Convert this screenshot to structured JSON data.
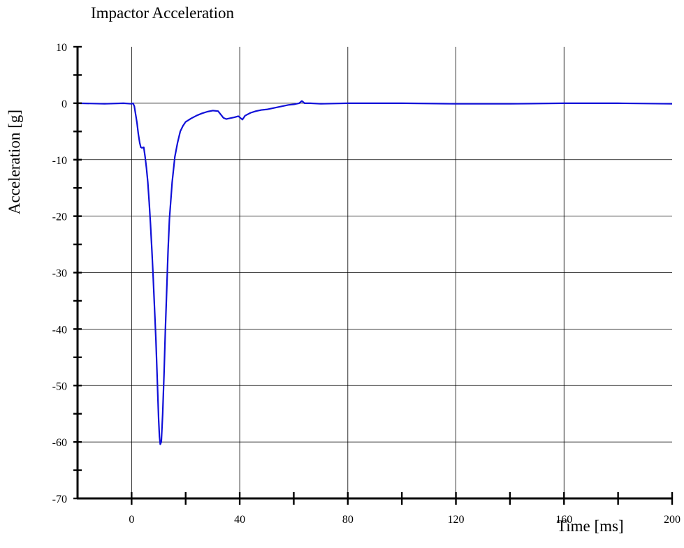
{
  "chart_data": {
    "type": "line",
    "title": "Impactor Acceleration",
    "xlabel": "Time [ms]",
    "ylabel": "Acceleration [g]",
    "xlim": [
      -20,
      200
    ],
    "ylim": [
      -70,
      10
    ],
    "grid": true,
    "x_ticks": [
      0,
      40,
      80,
      120,
      160,
      200
    ],
    "x_tick_labels": [
      "0",
      "40",
      "80",
      "120",
      "160",
      "200"
    ],
    "y_ticks": [
      10,
      0,
      -10,
      -20,
      -30,
      -40,
      -50,
      -60,
      -70
    ],
    "y_tick_labels": [
      "10",
      "0",
      "-10",
      "-20",
      "-30",
      "-40",
      "-50",
      "-60",
      "-70"
    ],
    "series": [
      {
        "color": "#1010d8",
        "x": [
          -20,
          -10,
          -3,
          0,
          0.5,
          1,
          1.5,
          2,
          2.5,
          3,
          3.4,
          3.8,
          4.5,
          5,
          5.5,
          6,
          6.5,
          7,
          7.5,
          8,
          8.5,
          9,
          9.5,
          10,
          10.3,
          10.6,
          11,
          11.5,
          12,
          12.5,
          13,
          13.5,
          14,
          15,
          16,
          17,
          18,
          19,
          20,
          21,
          22,
          24,
          26,
          28,
          30,
          32,
          33,
          34,
          35,
          36,
          38,
          39.5,
          40,
          41,
          42,
          44,
          46,
          48,
          50,
          52,
          54,
          56,
          58,
          60,
          61,
          62,
          62.5,
          63,
          63.5,
          64,
          66,
          70,
          80,
          100,
          120,
          140,
          160,
          180,
          200
        ],
        "y": [
          0,
          -0.1,
          0,
          -0.1,
          0,
          -0.5,
          -2,
          -3.5,
          -5.5,
          -7,
          -7.8,
          -7.9,
          -7.8,
          -9.5,
          -11.5,
          -14,
          -17.5,
          -21.5,
          -26,
          -31,
          -36.5,
          -42,
          -49,
          -56,
          -59,
          -60.4,
          -60,
          -55,
          -48,
          -40,
          -33,
          -26,
          -20.5,
          -14,
          -9.5,
          -7,
          -5,
          -4,
          -3.3,
          -3,
          -2.7,
          -2.2,
          -1.8,
          -1.5,
          -1.3,
          -1.4,
          -2,
          -2.6,
          -2.8,
          -2.7,
          -2.5,
          -2.3,
          -2.5,
          -2.9,
          -2.2,
          -1.7,
          -1.4,
          -1.2,
          -1.1,
          -0.9,
          -0.7,
          -0.5,
          -0.3,
          -0.2,
          -0.1,
          0,
          0.2,
          0.4,
          0.2,
          0,
          0,
          -0.1,
          0,
          0,
          -0.1,
          -0.1,
          0,
          0,
          -0.1
        ]
      }
    ]
  }
}
